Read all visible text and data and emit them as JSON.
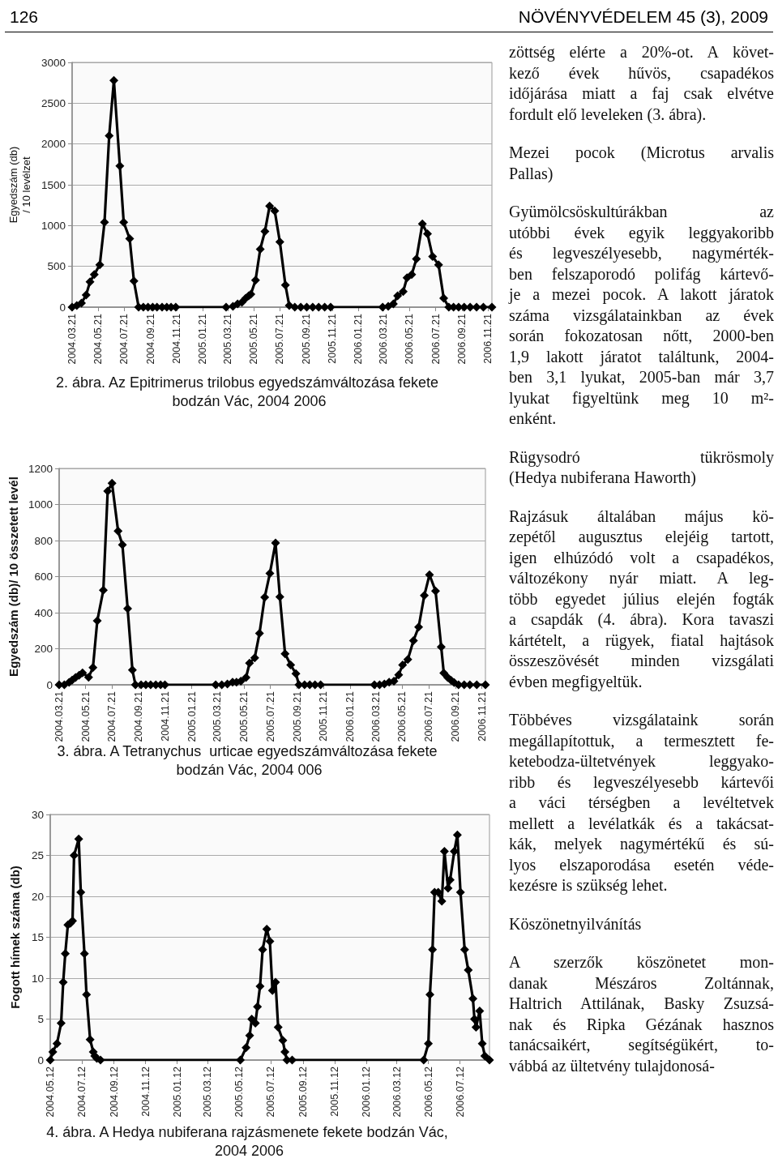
{
  "chart_data": [
    {
      "type": "other",
      "annotations": [
        "126",
        "NÖVÉNYVÉDELEM 45 (3), 2009"
      ]
    },
    {
      "type": "line",
      "title": "2. ábra. Az Epitrimerus trilobus egyedszámváltozása fekete bodzán Vác, 2004 2006",
      "ylabel": "Egyedszám (db)\n/ 10 levélzet",
      "x": [
        "2004-03-21",
        "2004-04-01",
        "2004-04-12",
        "2004-04-23",
        "2004-05-02",
        "2004-05-12",
        "2004-05-25",
        "2004-06-05",
        "2004-06-16",
        "2004-06-27",
        "2004-07-11",
        "2004-07-20",
        "2004-08-03",
        "2004-08-13",
        "2004-08-24",
        "2004-09-04",
        "2004-09-15",
        "2004-09-26",
        "2004-10-06",
        "2004-10-18",
        "2004-10-29",
        "2004-11-08",
        "2004-11-19",
        "2005-03-17",
        "2005-04-02",
        "2005-04-13",
        "2005-04-23",
        "2005-05-02",
        "2005-05-09",
        "2005-05-14",
        "2005-05-25",
        "2005-06-05",
        "2005-06-16",
        "2005-06-27",
        "2005-07-09",
        "2005-07-21",
        "2005-08-03",
        "2005-08-12",
        "2005-08-25",
        "2005-09-08",
        "2005-09-22",
        "2005-10-06",
        "2005-10-20",
        "2005-11-03",
        "2005-11-17",
        "2006-03-19",
        "2006-04-01",
        "2006-04-13",
        "2006-04-23",
        "2006-05-06",
        "2006-05-15",
        "2006-05-26",
        "2006-06-06",
        "2006-06-20",
        "2006-07-02",
        "2006-07-14",
        "2006-07-28",
        "2006-08-09",
        "2006-08-21",
        "2006-09-01",
        "2006-09-13",
        "2006-09-26",
        "2006-10-10",
        "2006-10-25",
        "2006-11-10",
        "2006-11-30"
      ],
      "series": [
        {
          "color": "#000000",
          "values": [
            0,
            20,
            50,
            150,
            310,
            400,
            520,
            1040,
            2100,
            2780,
            1730,
            1040,
            840,
            320,
            0,
            0,
            0,
            0,
            0,
            0,
            0,
            0,
            0,
            0,
            10,
            40,
            60,
            110,
            140,
            160,
            330,
            710,
            930,
            1240,
            1180,
            800,
            270,
            20,
            0,
            0,
            0,
            0,
            0,
            0,
            0,
            0,
            10,
            40,
            140,
            190,
            360,
            400,
            590,
            1020,
            900,
            620,
            520,
            110,
            0,
            0,
            0,
            0,
            0,
            0,
            0,
            0
          ]
        }
      ],
      "xlim": [
        "2004-03-21",
        "2006-11-30"
      ],
      "xticks": [
        {
          "value": "2004-03-21",
          "label": "2004.03.21"
        },
        {
          "value": "2004-05-21",
          "label": "2004.05.21"
        },
        {
          "value": "2004-07-21",
          "label": "2004.07.21"
        },
        {
          "value": "2004-09-21",
          "label": "2004.09.21"
        },
        {
          "value": "2004-11-21",
          "label": "2004.11.21"
        },
        {
          "value": "2005-01-21",
          "label": "2005.01.21"
        },
        {
          "value": "2005-03-21",
          "label": "2005.03.21"
        },
        {
          "value": "2005-05-21",
          "label": "2005.05.21"
        },
        {
          "value": "2005-07-21",
          "label": "2005.07.21"
        },
        {
          "value": "2005-09-21",
          "label": "2005.09.21"
        },
        {
          "value": "2005-11-21",
          "label": "2005.11.21"
        },
        {
          "value": "2006-01-21",
          "label": "2006.01.21"
        },
        {
          "value": "2006-03-21",
          "label": "2006.03.21"
        },
        {
          "value": "2006-05-21",
          "label": "2006.05.21"
        },
        {
          "value": "2006-07-21",
          "label": "2006.07.21"
        },
        {
          "value": "2006-09-21",
          "label": "2006.09.21"
        },
        {
          "value": "2006-11-21",
          "label": "2006.11.21"
        }
      ],
      "ylim": [
        0,
        3000
      ],
      "yticks": [
        0,
        500,
        1000,
        1500,
        2000,
        2500,
        3000
      ],
      "grid": "y",
      "marker": "diamond",
      "line_style": "solid"
    },
    {
      "type": "line",
      "title": "3. ábra. A Tetranychus  urticae egyedszámváltozása fekete bodzán Vác, 2004 006",
      "ylabel": "Egyedszám (db)/ 10 összetett levél",
      "x": [
        "2004-03-21",
        "2004-04-02",
        "2004-04-13",
        "2004-04-20",
        "2004-04-28",
        "2004-05-06",
        "2004-05-14",
        "2004-05-28",
        "2004-06-07",
        "2004-06-17",
        "2004-07-01",
        "2004-07-11",
        "2004-07-21",
        "2004-08-04",
        "2004-08-14",
        "2004-08-26",
        "2004-09-06",
        "2004-09-13",
        "2004-09-26",
        "2004-10-07",
        "2004-10-18",
        "2004-10-30",
        "2004-11-10",
        "2004-11-20",
        "2005-03-17",
        "2005-03-31",
        "2005-04-13",
        "2005-04-25",
        "2005-05-04",
        "2005-05-14",
        "2005-05-26",
        "2005-06-03",
        "2005-06-15",
        "2005-06-26",
        "2005-07-08",
        "2005-07-20",
        "2005-08-02",
        "2005-08-12",
        "2005-08-24",
        "2005-09-06",
        "2005-09-18",
        "2005-09-25",
        "2005-10-08",
        "2005-10-20",
        "2005-11-01",
        "2005-11-14",
        "2006-03-18",
        "2006-03-30",
        "2006-04-10",
        "2006-04-21",
        "2006-05-02",
        "2006-05-13",
        "2006-05-22",
        "2006-06-03",
        "2006-06-16",
        "2006-06-28",
        "2006-07-11",
        "2006-07-23",
        "2006-08-06",
        "2006-08-19",
        "2006-08-25",
        "2006-09-03",
        "2006-09-11",
        "2006-09-18",
        "2006-09-28",
        "2006-10-11",
        "2006-10-24",
        "2006-11-09",
        "2006-11-29"
      ],
      "series": [
        {
          "color": "#000000",
          "values": [
            0,
            0,
            13,
            26,
            40,
            53,
            66,
            42,
            95,
            355,
            525,
            1074,
            1118,
            853,
            776,
            423,
            82,
            0,
            0,
            0,
            0,
            0,
            0,
            0,
            0,
            0,
            5,
            15,
            15,
            20,
            40,
            120,
            150,
            285,
            485,
            618,
            787,
            488,
            172,
            110,
            62,
            0,
            0,
            0,
            0,
            0,
            0,
            0,
            5,
            15,
            20,
            55,
            110,
            140,
            245,
            320,
            495,
            610,
            520,
            210,
            65,
            40,
            25,
            12,
            0,
            0,
            0,
            0,
            0
          ]
        }
      ],
      "xlim": [
        "2004-03-21",
        "2006-11-29"
      ],
      "xticks": [
        {
          "value": "2004-03-21",
          "label": "2004.03.21"
        },
        {
          "value": "2004-05-21",
          "label": "2004.05.21"
        },
        {
          "value": "2004-07-21",
          "label": "2004.07.21"
        },
        {
          "value": "2004-09-21",
          "label": "2004.09.21"
        },
        {
          "value": "2004-11-21",
          "label": "2004.11.21"
        },
        {
          "value": "2005-01-21",
          "label": "2005.01.21"
        },
        {
          "value": "2005-03-21",
          "label": "2005.03.21"
        },
        {
          "value": "2005-05-21",
          "label": "2005.05.21"
        },
        {
          "value": "2005-07-21",
          "label": "2005.07.21"
        },
        {
          "value": "2005-09-21",
          "label": "2005.09.21"
        },
        {
          "value": "2005-11-21",
          "label": "2005.11.21"
        },
        {
          "value": "2006-01-21",
          "label": "2006.01.21"
        },
        {
          "value": "2006-03-21",
          "label": "2006.03.21"
        },
        {
          "value": "2006-05-21",
          "label": "2006.05.21"
        },
        {
          "value": "2006-07-21",
          "label": "2006.07.21"
        },
        {
          "value": "2006-09-21",
          "label": "2006.09.21"
        },
        {
          "value": "2006-11-21",
          "label": "2006.11.21"
        }
      ],
      "ylim": [
        0,
        1200
      ],
      "yticks": [
        0,
        200,
        400,
        600,
        800,
        1000,
        1200
      ],
      "grid": "y",
      "marker": "diamond",
      "line_style": "solid"
    },
    {
      "type": "line",
      "title": "4. ábra. A Hedya nubiferana rajzásmenete fekete bodzán Vác, 2004 2006",
      "ylabel": "Fogott hímek száma (db)",
      "x": [
        "2004-05-12",
        "2004-05-17",
        "2004-05-25",
        "2004-06-02",
        "2004-06-06",
        "2004-06-10",
        "2004-06-15",
        "2004-06-20",
        "2004-06-24",
        "2004-06-27",
        "2004-07-06",
        "2004-07-10",
        "2004-07-17",
        "2004-07-21",
        "2004-07-28",
        "2004-08-03",
        "2004-08-06",
        "2004-08-10",
        "2004-08-17",
        "2005-05-14",
        "2005-05-25",
        "2005-06-01",
        "2005-06-05",
        "2005-06-12",
        "2005-06-16",
        "2005-06-21",
        "2005-06-26",
        "2005-07-04",
        "2005-07-10",
        "2005-07-15",
        "2005-07-21",
        "2005-07-26",
        "2005-08-04",
        "2005-08-08",
        "2005-08-12",
        "2005-08-22",
        "2006-05-03",
        "2006-05-12",
        "2006-05-15",
        "2006-05-20",
        "2006-05-24",
        "2006-05-31",
        "2006-06-07",
        "2006-06-12",
        "2006-06-19",
        "2006-06-23",
        "2006-07-01",
        "2006-07-07",
        "2006-07-13",
        "2006-07-21",
        "2006-07-28",
        "2006-08-06",
        "2006-08-09",
        "2006-08-12",
        "2006-08-19",
        "2006-08-24",
        "2006-08-29",
        "2006-09-07"
      ],
      "series": [
        {
          "color": "#000000",
          "values": [
            0,
            1,
            2,
            4.5,
            9.5,
            13,
            16.5,
            16.7,
            17,
            25,
            27,
            20.5,
            13,
            8,
            2.5,
            1,
            0.5,
            0.2,
            0,
            0,
            1.5,
            3,
            5,
            4.5,
            6.5,
            9,
            13.5,
            16,
            14.5,
            8.5,
            9.5,
            4,
            2.4,
            1,
            0,
            0,
            0,
            2,
            8,
            13.5,
            20.5,
            20.5,
            19.4,
            25.5,
            21,
            22,
            25.5,
            27.5,
            20.5,
            13.5,
            11,
            7.5,
            5,
            4,
            6,
            2,
            0.5,
            0
          ]
        }
      ],
      "xlim": [
        "2004-05-12",
        "2006-09-07"
      ],
      "xticks": [
        {
          "value": "2004-05-12",
          "label": "2004.05.12"
        },
        {
          "value": "2004-07-12",
          "label": "2004.07.12"
        },
        {
          "value": "2004-09-12",
          "label": "2004.09.12"
        },
        {
          "value": "2004-11-12",
          "label": "2004.11.12"
        },
        {
          "value": "2005-01-12",
          "label": "2005.01.12"
        },
        {
          "value": "2005-03-12",
          "label": "2005.03.12"
        },
        {
          "value": "2005-05-12",
          "label": "2005.05.12"
        },
        {
          "value": "2005-07-12",
          "label": "2005.07.12"
        },
        {
          "value": "2005-09-12",
          "label": "2005.09.12"
        },
        {
          "value": "2005-11-12",
          "label": "2005.11.12"
        },
        {
          "value": "2006-01-12",
          "label": "2006.01.12"
        },
        {
          "value": "2006-03-12",
          "label": "2006.03.12"
        },
        {
          "value": "2006-05-12",
          "label": "2006.05.12"
        },
        {
          "value": "2006-07-12",
          "label": "2006.07.12"
        }
      ],
      "ylim": [
        0,
        30
      ],
      "yticks": [
        0,
        5,
        10,
        15,
        20,
        25,
        30
      ],
      "grid": "y",
      "marker": "diamond",
      "line_style": "solid"
    },
    {
      "type": "other",
      "annotations": [
        "zöttség elérte a 20%-ot. A követ-\nkező évek hűvös, csapadékos\nidőjárása miatt a faj csak elvétve\nfordult elő leveleken (3. ábra).",
        "Mezei pocok (Microtus arvalis\nPallas)",
        "Gyümölcsöskultúrákban az\nutóbbi évek egyik leggyakoribb\nés legveszélyesebb, nagymérték-\nben felszaporodó polifág kártevő-\nje a mezei pocok. A lakott járatok\nszáma vizsgálatainkban az évek\nsorán fokozatosan nőtt, 2000-ben\n1,9 lakott járatot találtunk, 2004-\nben 3,1 lyukat, 2005-ban már 3,7\nlyukat figyeltünk meg 10 m²-\nenként.",
        "Rügysodró tükrösmoly\n(Hedya nubiferana Haworth)",
        "Rajzásuk általában május kö-\nzepétől augusztus elejéig tartott,\nigen elhúzódó volt a csapadékos,\nváltozékony nyár miatt. A leg-\ntöbb egyedet július elején fogták\na csapdák (4. ábra). Kora tavaszi\nkártételt, a rügyek, fiatal hajtások\nösszeszövését minden vizsgálati\névben megfigyeltük.",
        "Többéves vizsgálataink során\nmegállapítottuk, a termesztett fe-\nketebodza-ültetvények leggyako-\nribb és legveszélyesebb kártevői\na váci térségben a levéltetvek\nmellett a levélatkák és a takácsat-\nkák, melyek nagymértékű és sú-\nlyos elszaporodása esetén véde-\nkezésre is szükség lehet.",
        "Köszönetnyilvánítás",
        "A szerzők köszönetet mon-\ndanak Mészáros Zoltánnak,\nHaltrich Attilának, Basky Zsuzsá-\nnak és Ripka Gézának hasznos\ntanácsaikért, segítségükért, to-\nvábbá az ültetvény tulajdonosá-"
      ]
    }
  ]
}
